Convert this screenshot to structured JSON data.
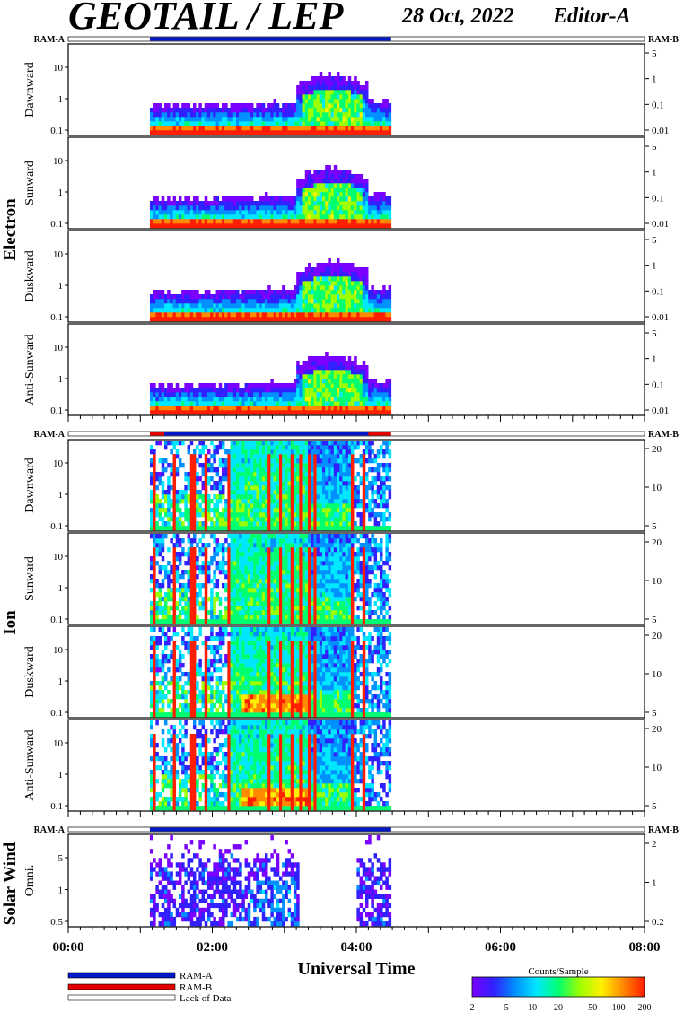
{
  "header": {
    "title": "GEOTAIL / LEP",
    "date": "28 Oct, 2022",
    "editor": "Editor-A"
  },
  "ram_labels": {
    "left": "RAM-A",
    "right": "RAM-B"
  },
  "groups": [
    {
      "name": "Electron"
    },
    {
      "name": "Ion"
    },
    {
      "name": "Solar Wind"
    }
  ],
  "chart_data": {
    "type": "heatmap",
    "xlabel": "Universal Time",
    "x_ticks": [
      "00:00",
      "02:00",
      "04:00",
      "06:00",
      "08:00"
    ],
    "x_range": [
      "00:00",
      "08:00"
    ],
    "data_interval": [
      "01:08",
      "04:29"
    ],
    "colorbar": {
      "label": "Counts/Sample",
      "ticks": [
        "2",
        "5",
        "10",
        "20",
        "50",
        "100",
        "200"
      ],
      "range": [
        2,
        200
      ],
      "scale": "log",
      "colors": [
        "#7a00ff",
        "#3020ff",
        "#0090ff",
        "#00e8ff",
        "#00ff70",
        "#9dff00",
        "#fff000",
        "#ff8a00",
        "#ff1e00"
      ]
    },
    "panels": [
      {
        "group": "Electron",
        "label": "Dawnward",
        "left_ticks": [
          "10",
          "1",
          "0.1"
        ],
        "right_ticks": [
          "5",
          "1",
          "0.1",
          "0.01"
        ],
        "kind": "electron"
      },
      {
        "group": "Electron",
        "label": "Sunward",
        "left_ticks": [
          "10",
          "1",
          "0.1"
        ],
        "right_ticks": [
          "5",
          "1",
          "0.1",
          "0.01"
        ],
        "kind": "electron"
      },
      {
        "group": "Electron",
        "label": "Duskward",
        "left_ticks": [
          "10",
          "1",
          "0.1"
        ],
        "right_ticks": [
          "5",
          "1",
          "0.1",
          "0.01"
        ],
        "kind": "electron"
      },
      {
        "group": "Electron",
        "label": "Anti-Sunward",
        "left_ticks": [
          "10",
          "1",
          "0.1"
        ],
        "right_ticks": [
          "5",
          "1",
          "0.1",
          "0.01"
        ],
        "kind": "electron"
      },
      {
        "group": "Ion",
        "label": "Dawnward",
        "left_ticks": [
          "10",
          "1",
          "0.1"
        ],
        "right_ticks": [
          "20",
          "10",
          "5"
        ],
        "kind": "ion"
      },
      {
        "group": "Ion",
        "label": "Sunward",
        "left_ticks": [
          "10",
          "1",
          "0.1"
        ],
        "right_ticks": [
          "20",
          "10",
          "5"
        ],
        "kind": "ion"
      },
      {
        "group": "Ion",
        "label": "Duskward",
        "left_ticks": [
          "10",
          "1",
          "0.1"
        ],
        "right_ticks": [
          "20",
          "10",
          "5"
        ],
        "kind": "ion"
      },
      {
        "group": "Ion",
        "label": "Anti-Sunward",
        "left_ticks": [
          "10",
          "1",
          "0.1"
        ],
        "right_ticks": [
          "20",
          "10",
          "5"
        ],
        "kind": "ion"
      },
      {
        "group": "Solar Wind",
        "label": "Omni.",
        "left_ticks": [
          "5",
          "1",
          "0.5"
        ],
        "right_ticks": [
          "2",
          "1",
          "0.2"
        ],
        "kind": "sw"
      }
    ],
    "ram_bars": [
      {
        "section": "Electron",
        "segments": [
          {
            "mode": "RAM-A",
            "from": "01:08",
            "to": "04:29"
          }
        ]
      },
      {
        "section": "Ion",
        "segments": [
          {
            "mode": "RAM-B",
            "from": "01:08",
            "to": "04:29"
          },
          {
            "mode": "RAM-A",
            "from": "01:20",
            "to": "04:10"
          }
        ]
      },
      {
        "section": "Solar Wind",
        "segments": [
          {
            "mode": "RAM-A",
            "from": "01:08",
            "to": "04:29"
          }
        ]
      }
    ]
  },
  "legend": {
    "items": [
      {
        "label": "RAM-A",
        "color": "#0018c8"
      },
      {
        "label": "RAM-B",
        "color": "#e00000"
      },
      {
        "label": "Lack of Data",
        "color": "#ffffff"
      }
    ]
  }
}
